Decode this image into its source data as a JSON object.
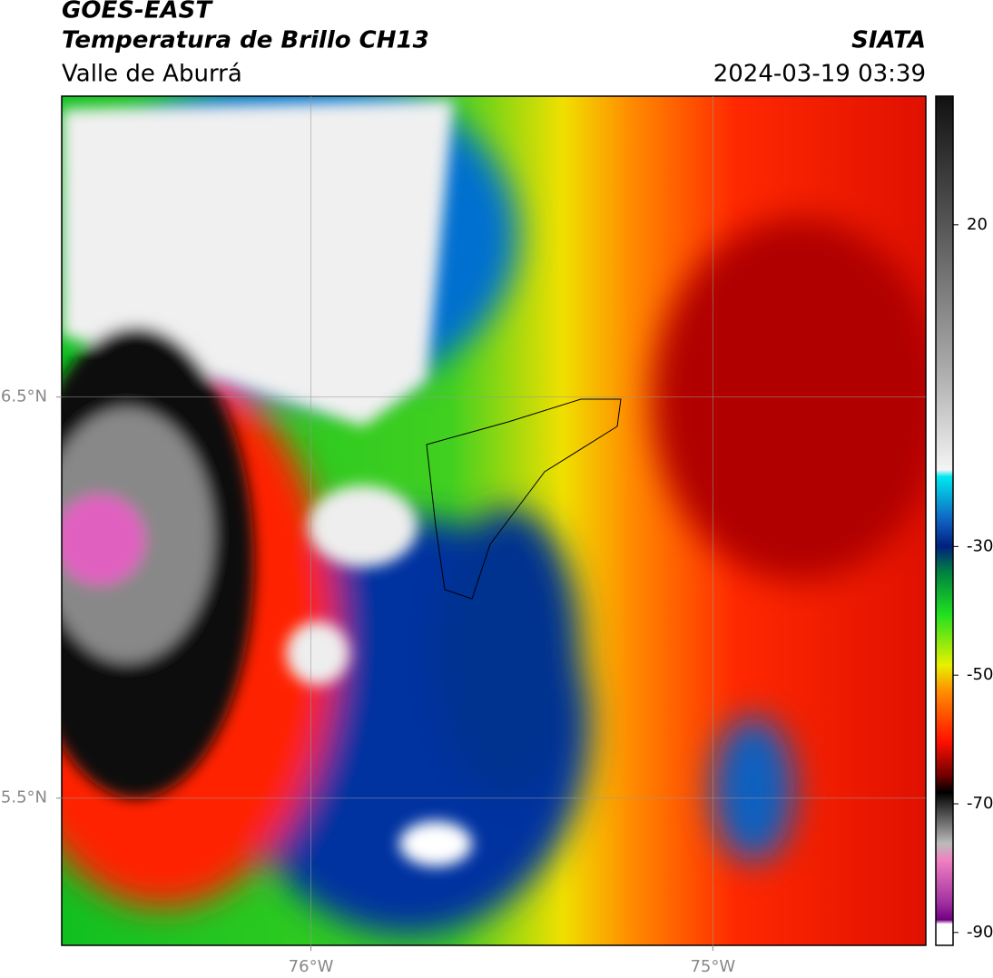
{
  "header": {
    "satellite": "GOES-EAST",
    "product": "Temperatura de Brillo CH13",
    "region": "Valle de Aburrá",
    "agency": "SIATA",
    "datetime": "2024-03-19 03:39"
  },
  "map": {
    "lon_range": [
      -76.62,
      -74.47
    ],
    "lat_range": [
      5.133,
      7.25
    ],
    "lon_ticks": [
      {
        "value": -76,
        "label": "76°W"
      },
      {
        "value": -75,
        "label": "75°W"
      }
    ],
    "lat_ticks": [
      {
        "value": 6.5,
        "label": "6.5°N"
      },
      {
        "value": 5.5,
        "label": "5.5°N"
      }
    ]
  },
  "colorbar": {
    "range": [
      -92,
      40
    ],
    "ticks": [
      20,
      -30,
      -50,
      -70,
      -90
    ]
  }
}
